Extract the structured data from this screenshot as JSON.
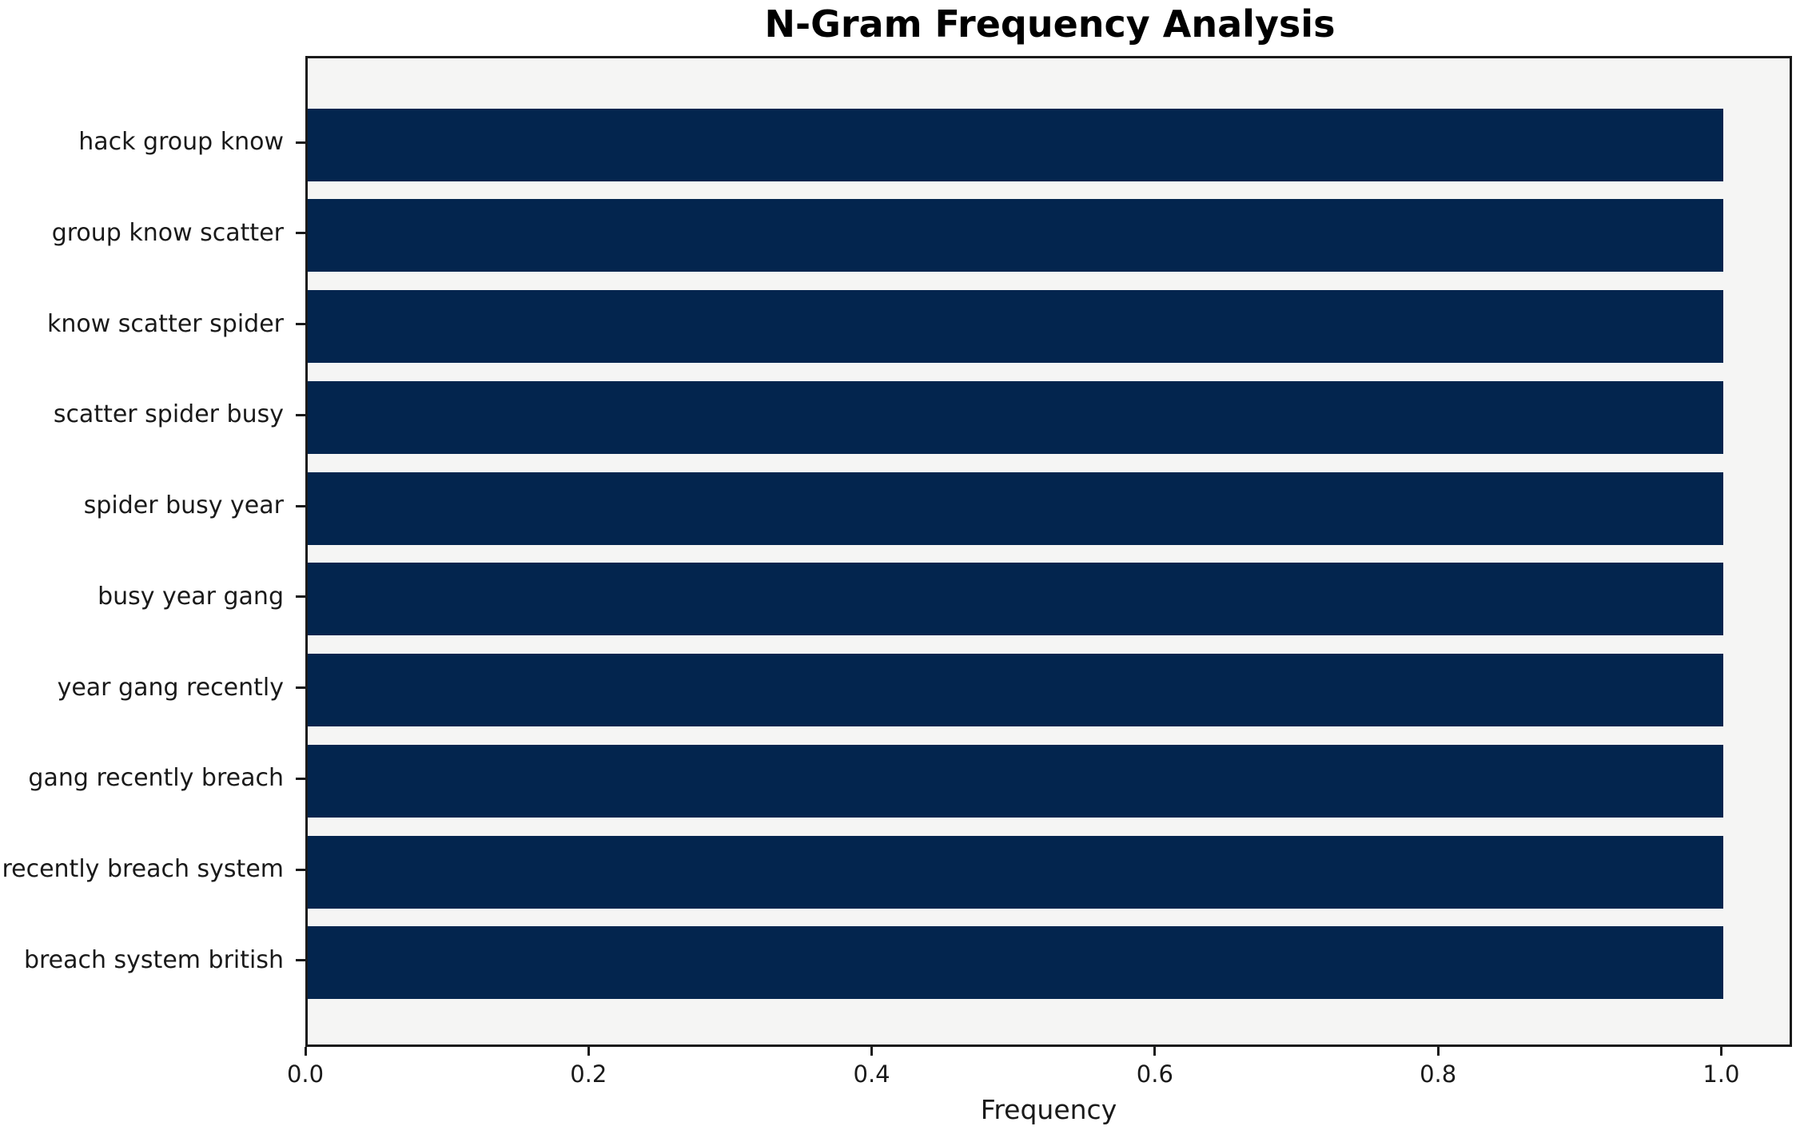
{
  "chart_data": {
    "type": "bar",
    "orientation": "horizontal",
    "title": "N-Gram Frequency Analysis",
    "xlabel": "Frequency",
    "ylabel": "",
    "categories": [
      "hack group know",
      "group know scatter",
      "know scatter spider",
      "scatter spider busy",
      "spider busy year",
      "busy year gang",
      "year gang recently",
      "gang recently breach",
      "recently breach system",
      "breach system british"
    ],
    "values": [
      1.0,
      1.0,
      1.0,
      1.0,
      1.0,
      1.0,
      1.0,
      1.0,
      1.0,
      1.0
    ],
    "xlim": [
      0,
      1.05
    ],
    "x_ticks": [
      0.0,
      0.2,
      0.4,
      0.6,
      0.8,
      1.0
    ],
    "x_tick_labels": [
      "0.0",
      "0.2",
      "0.4",
      "0.6",
      "0.8",
      "1.0"
    ],
    "grid": false,
    "legend": null,
    "colors": {
      "bar": "#03254e",
      "plot_background": "#f5f5f4",
      "figure_background": "#ffffff",
      "spine": "#1a1a1a",
      "text": "#1a1a1a"
    }
  }
}
